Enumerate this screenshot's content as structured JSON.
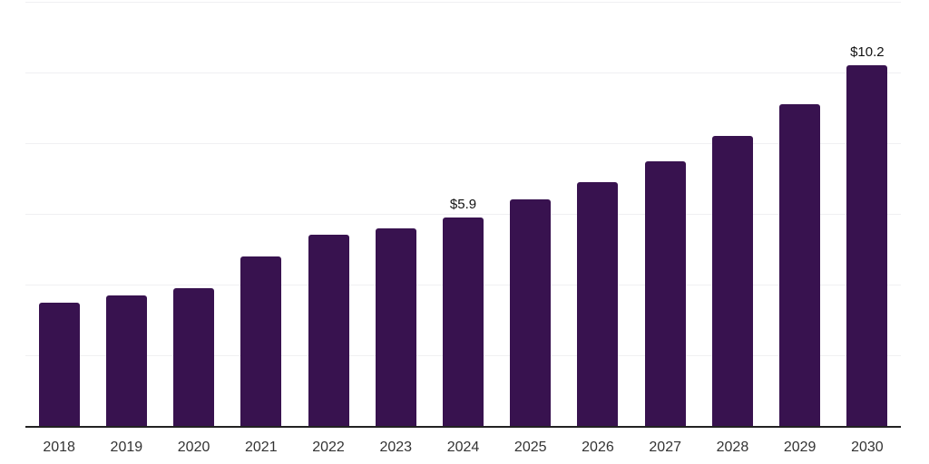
{
  "chart_data": {
    "type": "bar",
    "title": "",
    "xlabel": "",
    "ylabel": "",
    "categories": [
      "2018",
      "2019",
      "2020",
      "2021",
      "2022",
      "2023",
      "2024",
      "2025",
      "2026",
      "2027",
      "2028",
      "2029",
      "2030"
    ],
    "values": [
      3.5,
      3.7,
      3.9,
      4.8,
      5.4,
      5.6,
      5.9,
      6.4,
      6.9,
      7.5,
      8.2,
      9.1,
      10.2
    ],
    "data_labels": {
      "2024": "$5.9",
      "2030": "$10.2"
    },
    "ylim": [
      0,
      12
    ],
    "grid_interval": 2,
    "grid": "horizontal-only",
    "y_tick_labels_visible": false,
    "legend": "none",
    "colors": {
      "bar": "#38124f",
      "gridline": "#f0f0f2",
      "axis_line": "#222222",
      "tick_label": "#333333",
      "data_label": "#111111",
      "background": "#ffffff"
    }
  }
}
